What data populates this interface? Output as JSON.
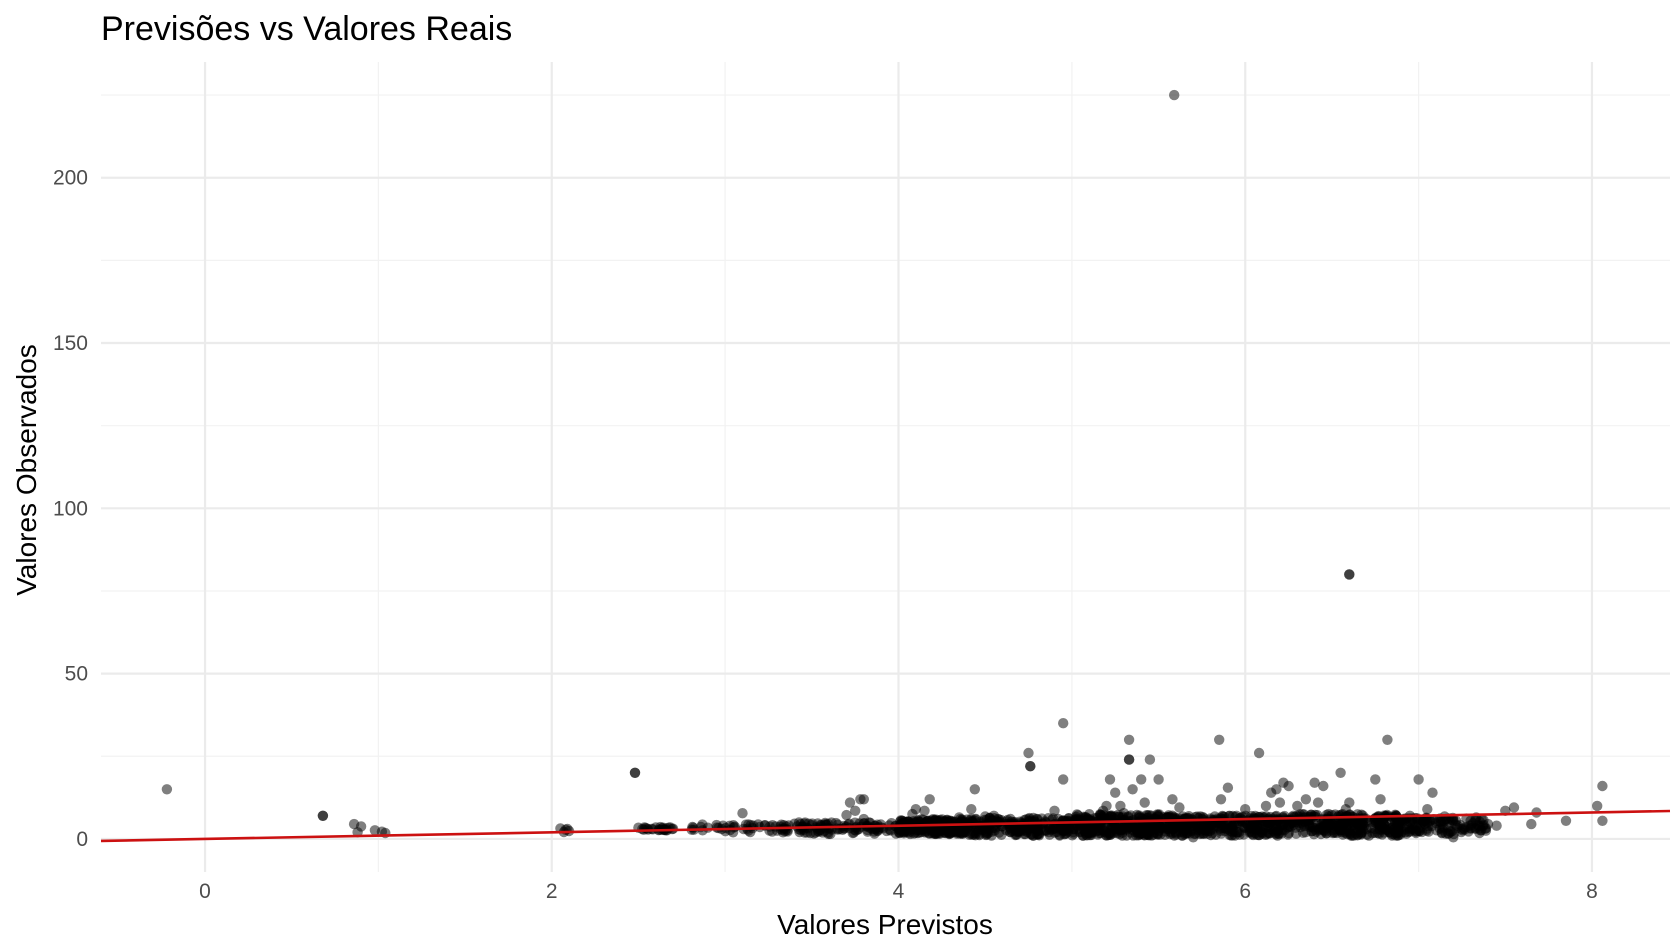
{
  "chart_data": {
    "type": "scatter",
    "title": "Previsões vs Valores Reais",
    "xlabel": "Valores Previstos",
    "ylabel": "Valores Observados",
    "xlim": [
      -0.6,
      8.45
    ],
    "ylim": [
      -10,
      235
    ],
    "x_ticks": [
      0,
      2,
      4,
      6,
      8
    ],
    "y_ticks": [
      0,
      50,
      100,
      150,
      200
    ],
    "x_tick_labels": [
      "0",
      "2",
      "4",
      "6",
      "8"
    ],
    "y_tick_labels": [
      "0",
      "50",
      "100",
      "150",
      "200"
    ],
    "grid": true,
    "legend": "none",
    "point_color": "#000000",
    "point_opacity": 0.5,
    "reference_line": {
      "color": "#cc1111",
      "x": [
        -0.6,
        8.45
      ],
      "y": [
        -0.6,
        8.45
      ]
    },
    "points": [
      [
        -0.22,
        15
      ],
      [
        0.68,
        7
      ],
      [
        0.68,
        7
      ],
      [
        0.86,
        4.5
      ],
      [
        0.88,
        2
      ],
      [
        0.9,
        3.8
      ],
      [
        0.98,
        2.6
      ],
      [
        1.02,
        2.2
      ],
      [
        1.04,
        1.8
      ],
      [
        2.05,
        3.2
      ],
      [
        2.07,
        2.1
      ],
      [
        2.08,
        2.8
      ],
      [
        2.1,
        2.4
      ],
      [
        2.09,
        3
      ],
      [
        2.48,
        20
      ],
      [
        2.48,
        20
      ],
      [
        2.5,
        3.4
      ],
      [
        2.55,
        3.1
      ],
      [
        2.6,
        3.5
      ],
      [
        2.62,
        2.8
      ],
      [
        2.66,
        3.2
      ],
      [
        2.7,
        3.1
      ],
      [
        2.82,
        2.8
      ],
      [
        2.86,
        3.6
      ],
      [
        2.9,
        3.4
      ],
      [
        2.95,
        4.2
      ],
      [
        2.98,
        3
      ],
      [
        3.05,
        3.5
      ],
      [
        3.1,
        7.8
      ],
      [
        3.12,
        4.3
      ],
      [
        3.2,
        3.6
      ],
      [
        3.3,
        2.5
      ],
      [
        3.35,
        3.8
      ],
      [
        3.4,
        4.6
      ],
      [
        3.45,
        3.8
      ],
      [
        3.5,
        4.2
      ],
      [
        3.55,
        3.6
      ],
      [
        3.6,
        3.2
      ],
      [
        3.65,
        4.3
      ],
      [
        3.7,
        7.2
      ],
      [
        3.72,
        11
      ],
      [
        3.75,
        8.5
      ],
      [
        3.78,
        12
      ],
      [
        3.8,
        12
      ],
      [
        3.8,
        6
      ],
      [
        3.85,
        3
      ],
      [
        3.9,
        3.5
      ],
      [
        3.95,
        2.8
      ],
      [
        4.02,
        5.5
      ],
      [
        4.05,
        4
      ],
      [
        4.08,
        7.5
      ],
      [
        4.1,
        9
      ],
      [
        4.12,
        5.2
      ],
      [
        4.15,
        8.5
      ],
      [
        4.18,
        12
      ],
      [
        4.2,
        4.5
      ],
      [
        4.22,
        3.5
      ],
      [
        4.3,
        4.8
      ],
      [
        4.35,
        6.5
      ],
      [
        4.38,
        3.2
      ],
      [
        4.42,
        9
      ],
      [
        4.44,
        15
      ],
      [
        4.5,
        6.8
      ],
      [
        4.55,
        7
      ],
      [
        4.6,
        3.8
      ],
      [
        4.65,
        4.5
      ],
      [
        4.7,
        5.2
      ],
      [
        4.75,
        26
      ],
      [
        4.76,
        22
      ],
      [
        4.76,
        22
      ],
      [
        4.8,
        4.5
      ],
      [
        4.85,
        5
      ],
      [
        4.9,
        8.5
      ],
      [
        4.95,
        35
      ],
      [
        4.95,
        18
      ],
      [
        4.98,
        3.5
      ],
      [
        5.02,
        4.5
      ],
      [
        5.08,
        5.8
      ],
      [
        5.12,
        3.5
      ],
      [
        5.18,
        8.5
      ],
      [
        5.2,
        10
      ],
      [
        5.22,
        18
      ],
      [
        5.25,
        14
      ],
      [
        5.28,
        10
      ],
      [
        5.3,
        7.8
      ],
      [
        5.33,
        30
      ],
      [
        5.33,
        24
      ],
      [
        5.33,
        24
      ],
      [
        5.35,
        15
      ],
      [
        5.38,
        5
      ],
      [
        5.4,
        18
      ],
      [
        5.42,
        11
      ],
      [
        5.45,
        24
      ],
      [
        5.5,
        18
      ],
      [
        5.55,
        6.5
      ],
      [
        5.58,
        12
      ],
      [
        5.59,
        225
      ],
      [
        5.62,
        9.5
      ],
      [
        5.65,
        4
      ],
      [
        5.7,
        0.5
      ],
      [
        5.75,
        6
      ],
      [
        5.8,
        5.8
      ],
      [
        5.85,
        30
      ],
      [
        5.86,
        12
      ],
      [
        5.9,
        15.5
      ],
      [
        5.95,
        7
      ],
      [
        6.0,
        9
      ],
      [
        6.05,
        5.8
      ],
      [
        6.08,
        26
      ],
      [
        6.12,
        10
      ],
      [
        6.15,
        14
      ],
      [
        6.18,
        15
      ],
      [
        6.2,
        11
      ],
      [
        6.22,
        17
      ],
      [
        6.25,
        16
      ],
      [
        6.3,
        10
      ],
      [
        6.35,
        12
      ],
      [
        6.4,
        17
      ],
      [
        6.42,
        11
      ],
      [
        6.45,
        16
      ],
      [
        6.48,
        7.5
      ],
      [
        6.52,
        3
      ],
      [
        6.55,
        20
      ],
      [
        6.58,
        9
      ],
      [
        6.6,
        11
      ],
      [
        6.6,
        80
      ],
      [
        6.6,
        80
      ],
      [
        6.65,
        5.5
      ],
      [
        6.7,
        3
      ],
      [
        6.75,
        18
      ],
      [
        6.78,
        12
      ],
      [
        6.82,
        30
      ],
      [
        6.85,
        6.5
      ],
      [
        6.9,
        5.8
      ],
      [
        6.95,
        7
      ],
      [
        7.0,
        18
      ],
      [
        7.05,
        9
      ],
      [
        7.08,
        14
      ],
      [
        7.1,
        5.5
      ],
      [
        7.15,
        6.8
      ],
      [
        7.2,
        0.5
      ],
      [
        7.25,
        3
      ],
      [
        7.3,
        5.5
      ],
      [
        7.35,
        3.2
      ],
      [
        7.4,
        4.5
      ],
      [
        7.45,
        4
      ],
      [
        7.5,
        8.5
      ],
      [
        7.55,
        9.5
      ],
      [
        7.65,
        4.5
      ],
      [
        7.68,
        8
      ],
      [
        7.85,
        5.5
      ],
      [
        8.03,
        10
      ],
      [
        8.06,
        16
      ],
      [
        8.06,
        5.5
      ]
    ],
    "density_clusters": [
      {
        "x": [
          2.5,
          2.7
        ],
        "y": [
          2.4,
          3.6
        ],
        "n": 20
      },
      {
        "x": [
          2.8,
          3.6
        ],
        "y": [
          2,
          4.5
        ],
        "n": 50
      },
      {
        "x": [
          3.4,
          4.0
        ],
        "y": [
          1.5,
          5
        ],
        "n": 90
      },
      {
        "x": [
          4.0,
          4.4
        ],
        "y": [
          1.5,
          6
        ],
        "n": 240
      },
      {
        "x": [
          4.4,
          5.0
        ],
        "y": [
          1,
          6.5
        ],
        "n": 220
      },
      {
        "x": [
          5.0,
          5.6
        ],
        "y": [
          1,
          7.5
        ],
        "n": 300
      },
      {
        "x": [
          5.6,
          6.2
        ],
        "y": [
          1,
          7
        ],
        "n": 260
      },
      {
        "x": [
          6.2,
          6.9
        ],
        "y": [
          1,
          7.5
        ],
        "n": 300
      },
      {
        "x": [
          6.9,
          7.4
        ],
        "y": [
          1.5,
          6.5
        ],
        "n": 120
      }
    ]
  }
}
